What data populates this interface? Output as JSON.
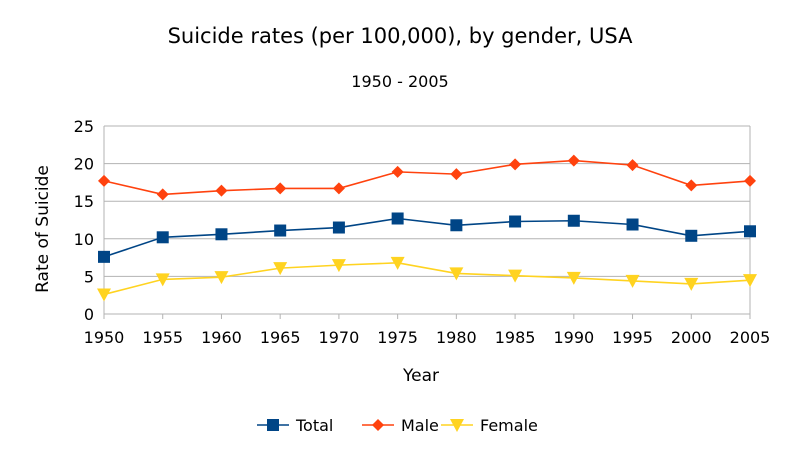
{
  "chart_data": {
    "type": "line",
    "title": "Suicide rates (per 100,000), by gender, USA",
    "subtitle": "1950 - 2005",
    "xlabel": "Year",
    "ylabel": "Rate of Suicide",
    "x": [
      "1950",
      "1955",
      "1960",
      "1965",
      "1970",
      "1975",
      "1980",
      "1985",
      "1990",
      "1995",
      "2000",
      "2005"
    ],
    "ylim": [
      0,
      25
    ],
    "yticks": [
      0,
      5,
      10,
      15,
      20,
      25
    ],
    "grid": true,
    "legend_position": "bottom",
    "series": [
      {
        "name": "Total",
        "color": "#004586",
        "marker": "square",
        "values": [
          7.6,
          10.2,
          10.6,
          11.1,
          11.5,
          12.7,
          11.8,
          12.3,
          12.4,
          11.9,
          10.4,
          11.0
        ]
      },
      {
        "name": "Male",
        "color": "#ff420e",
        "marker": "diamond",
        "values": [
          17.7,
          15.9,
          16.4,
          16.7,
          16.7,
          18.9,
          18.6,
          19.9,
          20.4,
          19.8,
          17.1,
          17.7
        ]
      },
      {
        "name": "Female",
        "color": "#ffd320",
        "marker": "triangle-down",
        "values": [
          2.6,
          4.6,
          4.9,
          6.1,
          6.5,
          6.8,
          5.4,
          5.1,
          4.8,
          4.4,
          4.0,
          4.5
        ]
      }
    ]
  }
}
